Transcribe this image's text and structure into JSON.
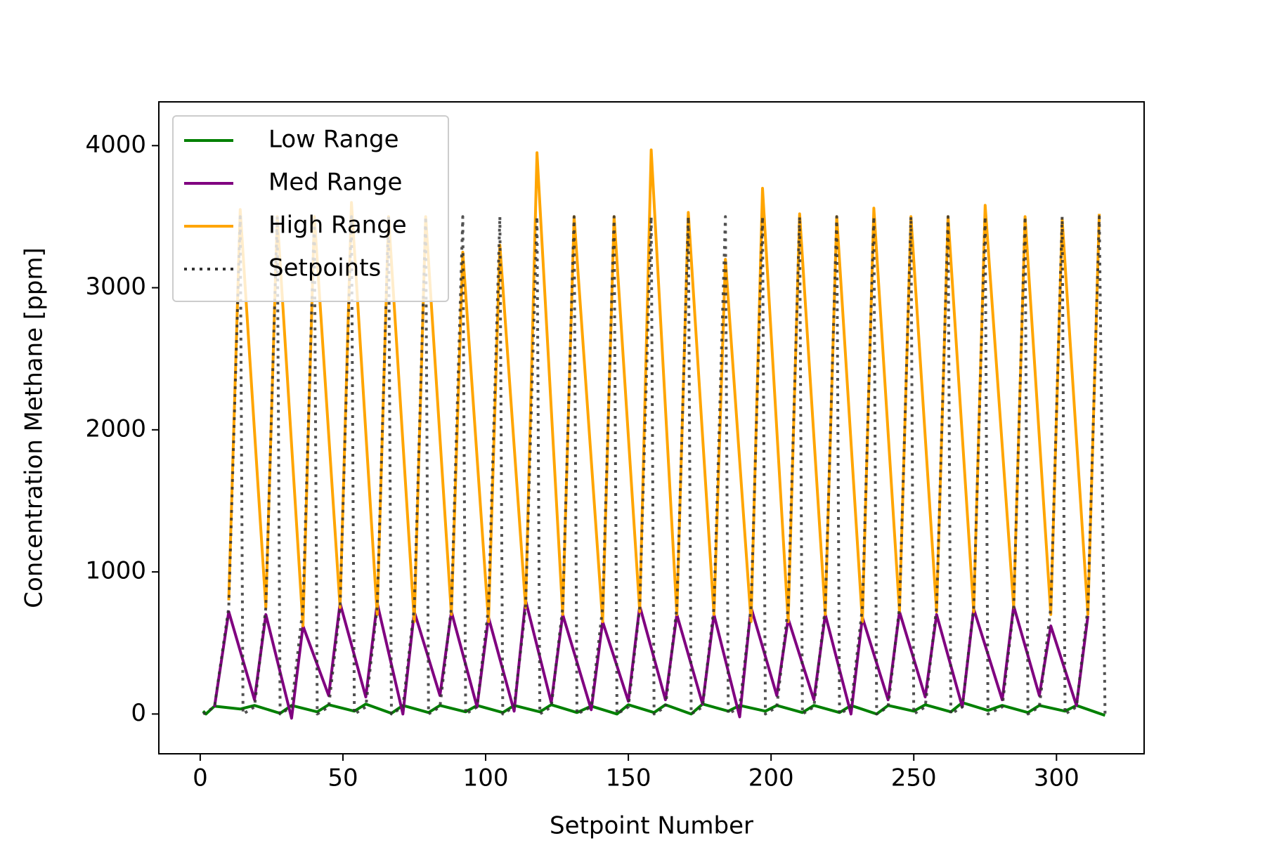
{
  "chart_data": {
    "type": "line",
    "xlabel": "Setpoint Number",
    "ylabel": "Concentration Methane [ppm]",
    "xlim": [
      -14.5,
      330.7
    ],
    "ylim": [
      -280,
      4308
    ],
    "xticks": [
      0,
      50,
      100,
      150,
      200,
      250,
      300
    ],
    "yticks": [
      0,
      1000,
      2000,
      3000,
      4000
    ],
    "legend": "upper left",
    "series": [
      {
        "name": "Low Range",
        "color": "#008000",
        "linestyle": "solid",
        "x": [
          1,
          2,
          5,
          14,
          19,
          28,
          32,
          41,
          45,
          54,
          58,
          67,
          71,
          80,
          84,
          93,
          97,
          106,
          110,
          119,
          123,
          132,
          137,
          146,
          150,
          159,
          163,
          172,
          176,
          185,
          189,
          198,
          202,
          211,
          215,
          224,
          228,
          237,
          241,
          250,
          254,
          263,
          267,
          276,
          281,
          290,
          294,
          303,
          307,
          317
        ],
        "values": [
          20,
          0,
          55,
          35,
          60,
          5,
          60,
          15,
          65,
          20,
          70,
          5,
          60,
          10,
          60,
          15,
          60,
          10,
          60,
          15,
          65,
          10,
          55,
          0,
          65,
          10,
          65,
          0,
          70,
          20,
          60,
          20,
          60,
          10,
          60,
          10,
          60,
          0,
          60,
          20,
          65,
          15,
          80,
          25,
          60,
          10,
          60,
          20,
          60,
          -10
        ]
      },
      {
        "name": "Med Range",
        "color": "#800080",
        "linestyle": "solid",
        "x": [
          5,
          10,
          19,
          23,
          32,
          36,
          45,
          49,
          58,
          62,
          71,
          75,
          84,
          88,
          97,
          101,
          110,
          114,
          123,
          127,
          137,
          141,
          150,
          154,
          163,
          167,
          176,
          180,
          189,
          193,
          202,
          206,
          215,
          219,
          228,
          232,
          241,
          245,
          254,
          258,
          267,
          271,
          281,
          285,
          294,
          298,
          307,
          311
        ],
        "values": [
          50,
          720,
          100,
          700,
          -30,
          620,
          130,
          780,
          120,
          780,
          0,
          720,
          130,
          720,
          50,
          680,
          20,
          800,
          80,
          700,
          30,
          650,
          90,
          760,
          100,
          700,
          70,
          700,
          -20,
          750,
          130,
          670,
          100,
          700,
          0,
          680,
          100,
          720,
          120,
          700,
          50,
          740,
          100,
          760,
          130,
          620,
          60,
          690
        ]
      },
      {
        "name": "High Range",
        "color": "#ffa500",
        "linestyle": "solid",
        "x": [
          10,
          14,
          23,
          27,
          36,
          40,
          49,
          53,
          62,
          66,
          75,
          79,
          88,
          92,
          101,
          105,
          114,
          118,
          127,
          131,
          141,
          145,
          154,
          158,
          167,
          171,
          180,
          184,
          193,
          197,
          206,
          210,
          219,
          223,
          232,
          236,
          245,
          249,
          258,
          262,
          271,
          275,
          285,
          289,
          298,
          302,
          311,
          315
        ],
        "values": [
          800,
          3550,
          750,
          3500,
          620,
          3500,
          750,
          3600,
          700,
          3500,
          650,
          3500,
          700,
          3250,
          650,
          3300,
          750,
          3950,
          700,
          3500,
          650,
          3500,
          720,
          3970,
          700,
          3530,
          700,
          3200,
          650,
          3700,
          650,
          3520,
          700,
          3500,
          650,
          3560,
          720,
          3500,
          720,
          3500,
          720,
          3580,
          750,
          3500,
          700,
          3480,
          700,
          3520
        ]
      },
      {
        "name": "Setpoints",
        "color": "#333333",
        "linestyle": "dotted",
        "x": [
          1,
          5,
          10,
          14,
          15,
          19,
          23,
          27,
          28,
          32,
          36,
          40,
          41,
          45,
          49,
          53,
          54,
          58,
          62,
          66,
          67,
          71,
          75,
          79,
          80,
          84,
          88,
          92,
          93,
          97,
          101,
          105,
          106,
          110,
          114,
          118,
          119,
          123,
          127,
          131,
          132,
          137,
          141,
          145,
          146,
          150,
          154,
          158,
          159,
          163,
          167,
          171,
          172,
          176,
          180,
          184,
          185,
          189,
          193,
          197,
          198,
          202,
          206,
          210,
          211,
          215,
          219,
          223,
          224,
          228,
          232,
          236,
          237,
          241,
          245,
          249,
          250,
          254,
          258,
          262,
          263,
          267,
          271,
          275,
          276,
          281,
          285,
          289,
          290,
          294,
          298,
          302,
          303,
          307,
          311,
          315,
          317
        ],
        "values": [
          0,
          50,
          750,
          3500,
          0,
          50,
          750,
          3500,
          0,
          50,
          750,
          3500,
          0,
          50,
          750,
          3500,
          0,
          50,
          750,
          3500,
          0,
          50,
          750,
          3500,
          0,
          50,
          750,
          3500,
          0,
          50,
          750,
          3500,
          0,
          50,
          750,
          3500,
          0,
          50,
          750,
          3500,
          0,
          50,
          750,
          3500,
          0,
          50,
          750,
          3500,
          0,
          50,
          750,
          3500,
          0,
          50,
          750,
          3500,
          0,
          50,
          750,
          3500,
          0,
          50,
          750,
          3500,
          0,
          50,
          750,
          3500,
          0,
          50,
          750,
          3500,
          0,
          50,
          750,
          3500,
          0,
          50,
          750,
          3500,
          0,
          50,
          750,
          3500,
          0,
          50,
          750,
          3500,
          0,
          50,
          750,
          3500,
          0,
          50,
          750,
          3500,
          0
        ]
      }
    ]
  }
}
